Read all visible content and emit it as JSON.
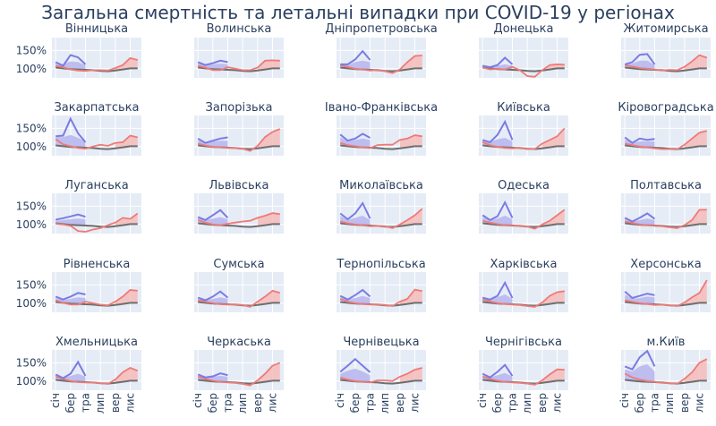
{
  "title": "Загальна смертність та летальні випадки при COVID-19 у регіонах",
  "colors": {
    "plot_bg": "#e5ecf6",
    "grid": "#ffffff",
    "text": "#2a3f5f",
    "baseline": "#6e6e6e",
    "excess": "#ef7a76",
    "excess_fill": "#f6b9b7",
    "covid": "#7b7be3",
    "covid_fill": "#b8b8ef"
  },
  "chart_data": {
    "type": "line",
    "y_tick_labels": [
      "150%",
      "100%"
    ],
    "y_ticks": [
      150,
      100
    ],
    "ylim": [
      75,
      185
    ],
    "x_tick_labels": [
      "січ",
      "бер",
      "тра",
      "лип",
      "вер",
      "лис"
    ],
    "x_ticks": [
      1,
      3,
      5,
      7,
      9,
      11
    ],
    "xlim": [
      0.5,
      12.5
    ],
    "months": [
      1,
      2,
      3,
      4,
      5,
      6,
      7,
      8,
      9,
      10,
      11,
      12
    ],
    "baseline": [
      103,
      101,
      99,
      98,
      97,
      96,
      94,
      93,
      95,
      98,
      101,
      101
    ],
    "regions": [
      {
        "name": "Вінницька",
        "excess": [
          108,
          104,
          98,
          95,
          94,
          96,
          96,
          95,
          102,
          110,
          129,
          124
        ],
        "covid": [
          118,
          108,
          137,
          131,
          112
        ],
        "covid_fill": [
          118,
          112,
          120,
          118,
          110
        ]
      },
      {
        "name": "Волинська",
        "excess": [
          108,
          103,
          96,
          96,
          104,
          100,
          96,
          96,
          103,
          122,
          123,
          122
        ],
        "covid": [
          118,
          110,
          115,
          122,
          118
        ],
        "covid_fill": [
          115,
          110,
          112,
          114,
          112
        ]
      },
      {
        "name": "Дніпропетровська",
        "excess": [
          110,
          105,
          100,
          98,
          95,
          97,
          93,
          88,
          98,
          118,
          135,
          136
        ],
        "covid": [
          112,
          112,
          125,
          148,
          124
        ],
        "covid_fill": [
          112,
          110,
          118,
          122,
          118
        ]
      },
      {
        "name": "Донецька",
        "excess": [
          103,
          98,
          100,
          98,
          105,
          96,
          80,
          78,
          96,
          110,
          112,
          111
        ],
        "covid": [
          108,
          104,
          110,
          130,
          112
        ],
        "covid_fill": [
          106,
          104,
          108,
          112,
          108
        ]
      },
      {
        "name": "Житомирська",
        "excess": [
          110,
          106,
          102,
          100,
          98,
          95,
          97,
          96,
          105,
          120,
          137,
          130
        ],
        "covid": [
          112,
          118,
          138,
          140,
          112
        ],
        "covid_fill": [
          112,
          114,
          122,
          122,
          110
        ]
      },
      {
        "name": "Закарпатська",
        "excess": [
          120,
          106,
          101,
          96,
          94,
          100,
          105,
          102,
          110,
          112,
          130,
          125
        ],
        "covid": [
          128,
          130,
          176,
          136,
          112
        ],
        "covid_fill": [
          126,
          126,
          132,
          124,
          114
        ]
      },
      {
        "name": "Запорізька",
        "excess": [
          108,
          103,
          99,
          98,
          96,
          96,
          94,
          88,
          102,
          126,
          140,
          148
        ],
        "covid": [
          122,
          110,
          116,
          122,
          125
        ],
        "covid_fill": [
          118,
          110,
          114,
          116,
          116
        ]
      },
      {
        "name": "Івано-Франківська",
        "excess": [
          110,
          104,
          101,
          98,
          96,
          104,
          105,
          105,
          118,
          122,
          131,
          128
        ],
        "covid": [
          133,
          116,
          122,
          135,
          124
        ],
        "covid_fill": [
          126,
          114,
          118,
          122,
          118
        ]
      },
      {
        "name": "Київська",
        "excess": [
          112,
          104,
          99,
          96,
          95,
          97,
          93,
          93,
          108,
          118,
          128,
          150
        ],
        "covid": [
          118,
          112,
          132,
          168,
          118
        ],
        "covid_fill": [
          116,
          112,
          120,
          124,
          114
        ]
      },
      {
        "name": "Кіровоградська",
        "excess": [
          108,
          104,
          100,
          98,
          95,
          93,
          93,
          92,
          105,
          122,
          138,
          143
        ],
        "covid": [
          125,
          110,
          122,
          118,
          121
        ],
        "covid_fill": [
          120,
          110,
          114,
          114,
          114
        ]
      },
      {
        "name": "Луганська",
        "excess": [
          102,
          100,
          96,
          82,
          80,
          86,
          90,
          98,
          105,
          118,
          115,
          130
        ],
        "covid": [
          113,
          117,
          122,
          127,
          121
        ],
        "covid_fill": [
          110,
          112,
          114,
          116,
          114
        ]
      },
      {
        "name": "Львівська",
        "excess": [
          112,
          105,
          100,
          98,
          102,
          105,
          108,
          110,
          118,
          124,
          131,
          128
        ],
        "covid": [
          120,
          112,
          125,
          139,
          118
        ],
        "covid_fill": [
          118,
          112,
          116,
          120,
          114
        ]
      },
      {
        "name": "Миколаївська",
        "excess": [
          108,
          103,
          100,
          98,
          95,
          96,
          95,
          90,
          100,
          112,
          125,
          143
        ],
        "covid": [
          130,
          114,
          130,
          158,
          116
        ],
        "covid_fill": [
          124,
          112,
          118,
          124,
          112
        ]
      },
      {
        "name": "Одеська",
        "excess": [
          110,
          105,
          101,
          98,
          96,
          97,
          94,
          88,
          100,
          110,
          125,
          140
        ],
        "covid": [
          125,
          112,
          122,
          160,
          118
        ],
        "covid_fill": [
          120,
          112,
          116,
          124,
          114
        ]
      },
      {
        "name": "Полтавська",
        "excess": [
          108,
          104,
          100,
          98,
          96,
          95,
          92,
          90,
          98,
          112,
          140,
          140
        ],
        "covid": [
          118,
          108,
          118,
          130,
          115
        ],
        "covid_fill": [
          115,
          108,
          112,
          116,
          112
        ]
      },
      {
        "name": "Рівненська",
        "excess": [
          108,
          101,
          96,
          96,
          104,
          100,
          96,
          94,
          104,
          118,
          136,
          134
        ],
        "covid": [
          118,
          110,
          118,
          128,
          124
        ],
        "covid_fill": [
          114,
          108,
          112,
          116,
          114
        ]
      },
      {
        "name": "Сумська",
        "excess": [
          108,
          104,
          100,
          97,
          96,
          97,
          95,
          90,
          104,
          118,
          134,
          128
        ],
        "covid": [
          115,
          108,
          118,
          132,
          115
        ],
        "covid_fill": [
          112,
          108,
          112,
          116,
          112
        ]
      },
      {
        "name": "Тернопільська",
        "excess": [
          112,
          104,
          100,
          98,
          96,
          97,
          95,
          92,
          104,
          112,
          137,
          133
        ],
        "covid": [
          120,
          110,
          122,
          136,
          118
        ],
        "covid_fill": [
          116,
          110,
          114,
          120,
          114
        ]
      },
      {
        "name": "Харківська",
        "excess": [
          110,
          105,
          100,
          98,
          96,
          95,
          92,
          90,
          102,
          120,
          130,
          133
        ],
        "covid": [
          115,
          110,
          120,
          156,
          114
        ],
        "covid_fill": [
          112,
          110,
          116,
          124,
          112
        ]
      },
      {
        "name": "Херсонська",
        "excess": [
          108,
          104,
          100,
          98,
          95,
          96,
          94,
          92,
          102,
          116,
          128,
          163
        ],
        "covid": [
          132,
          114,
          120,
          126,
          122
        ],
        "covid_fill": [
          124,
          112,
          114,
          118,
          116
        ]
      },
      {
        "name": "Хмельницька",
        "excess": [
          112,
          106,
          100,
          97,
          96,
          96,
          94,
          92,
          104,
          124,
          136,
          128
        ],
        "covid": [
          118,
          108,
          120,
          152,
          114
        ],
        "covid_fill": [
          116,
          108,
          114,
          120,
          112
        ]
      },
      {
        "name": "Черкаська",
        "excess": [
          112,
          106,
          101,
          98,
          96,
          95,
          92,
          88,
          102,
          120,
          142,
          150
        ],
        "covid": [
          118,
          110,
          113,
          121,
          116
        ],
        "covid_fill": [
          114,
          110,
          112,
          114,
          112
        ]
      },
      {
        "name": "Чернівецька",
        "excess": [
          110,
          104,
          100,
          98,
          96,
          102,
          102,
          100,
          112,
          120,
          131,
          136
        ],
        "covid": [
          125,
          142,
          160,
          142,
          124
        ],
        "covid_fill": [
          120,
          128,
          134,
          126,
          116
        ]
      },
      {
        "name": "Чернігівська",
        "excess": [
          112,
          106,
          101,
          98,
          96,
          95,
          93,
          90,
          102,
          118,
          132,
          131
        ],
        "covid": [
          120,
          110,
          125,
          144,
          114
        ],
        "covid_fill": [
          116,
          110,
          116,
          122,
          112
        ]
      },
      {
        "name": "м.Київ",
        "excess": [
          120,
          110,
          104,
          100,
          98,
          95,
          94,
          92,
          106,
          124,
          150,
          160
        ],
        "covid": [
          140,
          132,
          165,
          182,
          140
        ],
        "covid_fill": [
          132,
          126,
          140,
          146,
          126
        ]
      }
    ]
  }
}
